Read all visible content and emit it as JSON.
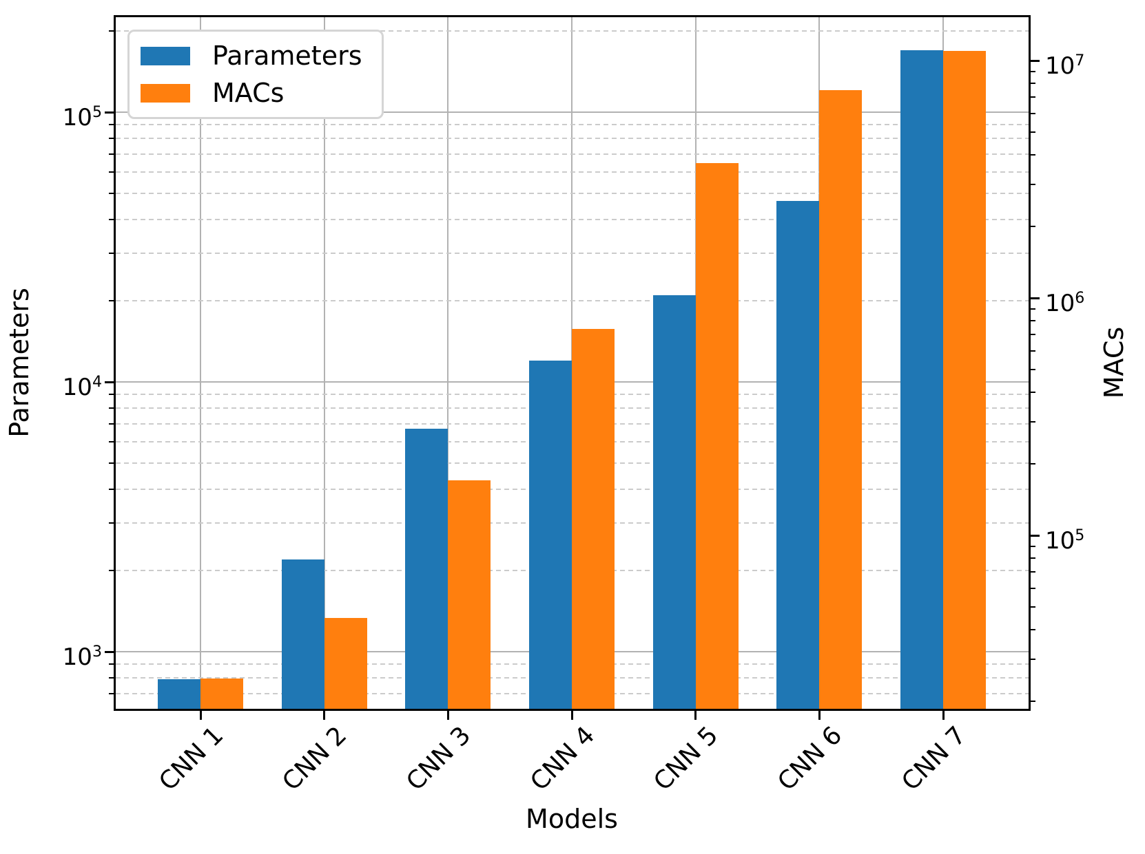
{
  "chart_data": {
    "type": "bar",
    "title": "",
    "categories": [
      "CNN 1",
      "CNN 2",
      "CNN 3",
      "CNN 4",
      "CNN 5",
      "CNN 6",
      "CNN 7"
    ],
    "series": [
      {
        "name": "Parameters",
        "axis": "left",
        "color": "#1f77b4",
        "values": [
          790,
          2200,
          6700,
          12000,
          21000,
          47000,
          170000
        ]
      },
      {
        "name": "MACs",
        "axis": "right",
        "color": "#ff7f0e",
        "values": [
          25000,
          45000,
          170000,
          740000,
          3700000,
          7500000,
          11000000
        ]
      }
    ],
    "xlabel": "Models",
    "ylabel_left": "Parameters",
    "ylabel_right": "MACs",
    "yscale": "log",
    "ylim_left": [
      620,
      225000
    ],
    "ylim_right": [
      18600,
      15200000
    ],
    "left_tick_exponents": [
      5,
      4,
      3
    ],
    "right_tick_exponents": [
      7,
      6,
      5
    ],
    "grid": true,
    "legend_position": "upper left"
  },
  "legend": {
    "items": [
      {
        "label": "Parameters",
        "color": "#1f77b4"
      },
      {
        "label": "MACs",
        "color": "#ff7f0e"
      }
    ]
  },
  "axis_labels": {
    "x": "Models",
    "y_left": "Parameters",
    "y_right": "MACs"
  }
}
